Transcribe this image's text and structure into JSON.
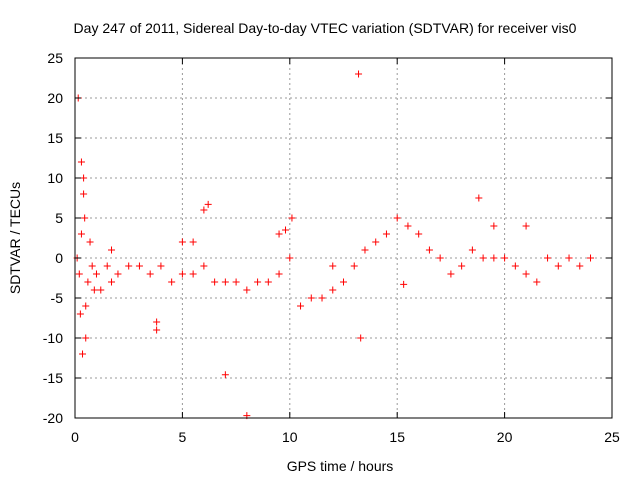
{
  "chart_data": {
    "type": "scatter",
    "title": "Day 247 of 2011, Sidereal Day-to-day VTEC variation (SDTVAR) for receiver vis0",
    "xlabel": "GPS time / hours",
    "ylabel": "SDTVAR / TECUs",
    "xlim": [
      0,
      25
    ],
    "ylim": [
      -20,
      25
    ],
    "xticks": [
      "0",
      "5",
      "10",
      "15",
      "20",
      "25"
    ],
    "yticks": [
      "25",
      "20",
      "15",
      "10",
      "5",
      "0",
      "-5",
      "-10",
      "-15",
      "-20"
    ],
    "grid": true,
    "marker": "+",
    "color": "#ff0000",
    "series": [
      {
        "name": "SDTVAR",
        "x": [
          0.1,
          0.2,
          0.3,
          0.4,
          0.5,
          0.6,
          0.8,
          1.0,
          1.2,
          1.5,
          1.7,
          2.0,
          2.5,
          3.0,
          3.5,
          3.8,
          4.0,
          4.5,
          5.0,
          5.5,
          6.0,
          6.5,
          7.0,
          7.5,
          8.0,
          8.5,
          9.0,
          9.5,
          10.0,
          10.5,
          11.0,
          11.5,
          12.0,
          12.5,
          13.0,
          13.5,
          14.0,
          14.5,
          15.0,
          15.5,
          16.0,
          16.5,
          17.0,
          17.5,
          18.0,
          18.5,
          19.0,
          19.5,
          20.0,
          20.5,
          21.0,
          21.5,
          22.0,
          22.5,
          23.0,
          23.5,
          24.0,
          0.3,
          0.35,
          0.4,
          1.7,
          3.8,
          5.0,
          5.5,
          6.0,
          6.2,
          7.0,
          8.0,
          9.5,
          9.8,
          10.1,
          12.0,
          13.2,
          13.3,
          15.3,
          18.8,
          19.5,
          21.0,
          0.15,
          0.25,
          0.45,
          0.5,
          0.7,
          0.9
        ],
        "y": [
          0,
          -2,
          3,
          8,
          -10,
          -3,
          -1,
          -2,
          -4,
          -1,
          -3,
          -2,
          -1,
          -1,
          -2,
          -9,
          -1,
          -3,
          -2,
          -2,
          -1,
          -3,
          -3,
          -3,
          -4,
          -3,
          -3,
          -2,
          0,
          -6,
          -5,
          -5,
          -4,
          -3,
          -1,
          1,
          2,
          3,
          5,
          4,
          3,
          1,
          0,
          -2,
          -1,
          1,
          0,
          0,
          0,
          -1,
          -2,
          -3,
          0,
          -1,
          0,
          -1,
          0,
          12,
          -12,
          10,
          1,
          -8,
          2,
          2,
          6,
          6.7,
          -14.6,
          -19.7,
          3,
          3.5,
          5,
          -1,
          23,
          -10,
          -3.3,
          7.5,
          4,
          4,
          20,
          -7,
          5,
          -6,
          2,
          -4
        ]
      }
    ]
  }
}
